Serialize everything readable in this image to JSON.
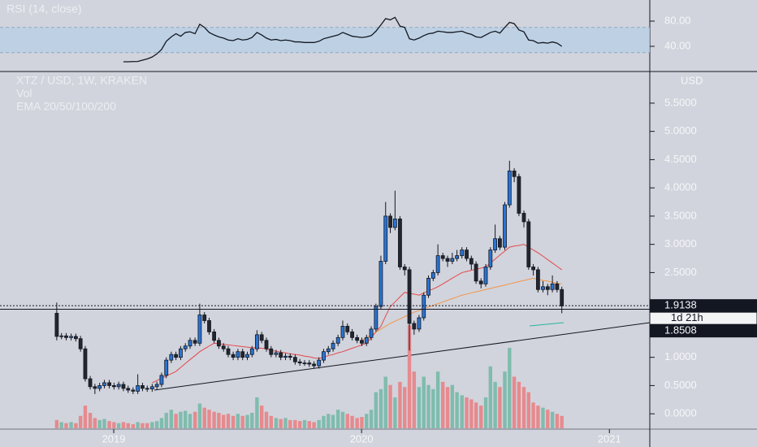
{
  "chart_data": {
    "type": "candlestick",
    "title": "XTZ / USD, 1W, KRAKEN",
    "volume_label": "Vol",
    "ema_label": "EMA 20/50/100/200",
    "currency": "USD",
    "countdown": "1d 21h",
    "last_price": {
      "value": 1.9138,
      "label": "1.9138"
    },
    "level": {
      "value": 1.8508,
      "label": "1.8508"
    },
    "up_color": "#2a74d4",
    "down_color": "#23262e",
    "up_volume_color": "#7fbcae",
    "down_volume_color": "#e68a8e",
    "xlim": [
      2018.541,
      2021.163
    ],
    "xticks": [
      2019,
      2020,
      2021
    ],
    "ylim": [
      -0.3,
      6.06
    ],
    "yticks": [
      {
        "value": 0,
        "label": "0.0000"
      },
      {
        "value": 0.5,
        "label": "0.5000"
      },
      {
        "value": 1,
        "label": "1.0000"
      },
      {
        "value": 2.5,
        "label": "2.5000"
      },
      {
        "value": 3,
        "label": "3.0000"
      },
      {
        "value": 3.5,
        "label": "3.5000"
      },
      {
        "value": 4,
        "label": "4.0000"
      },
      {
        "value": 4.5,
        "label": "4.5000"
      },
      {
        "value": 5,
        "label": "5.0000"
      },
      {
        "value": 5.5,
        "label": "5.5000"
      }
    ],
    "vlim": [
      0,
      100
    ],
    "x": [
      2018.77,
      2018.789,
      2018.808,
      2018.828,
      2018.847,
      2018.866,
      2018.885,
      2018.905,
      2018.924,
      2018.943,
      2018.962,
      2018.982,
      2019.001,
      2019.02,
      2019.039,
      2019.058,
      2019.078,
      2019.097,
      2019.116,
      2019.135,
      2019.155,
      2019.174,
      2019.193,
      2019.212,
      2019.232,
      2019.251,
      2019.27,
      2019.289,
      2019.308,
      2019.328,
      2019.347,
      2019.366,
      2019.385,
      2019.405,
      2019.424,
      2019.443,
      2019.462,
      2019.482,
      2019.501,
      2019.52,
      2019.539,
      2019.558,
      2019.578,
      2019.597,
      2019.616,
      2019.635,
      2019.655,
      2019.674,
      2019.693,
      2019.712,
      2019.732,
      2019.751,
      2019.77,
      2019.789,
      2019.808,
      2019.828,
      2019.847,
      2019.866,
      2019.885,
      2019.905,
      2019.924,
      2019.943,
      2019.962,
      2019.982,
      2020.001,
      2020.02,
      2020.039,
      2020.058,
      2020.078,
      2020.097,
      2020.116,
      2020.135,
      2020.155,
      2020.174,
      2020.193,
      2020.212,
      2020.232,
      2020.251,
      2020.27,
      2020.289,
      2020.308,
      2020.328,
      2020.347,
      2020.366,
      2020.385,
      2020.405,
      2020.424,
      2020.443,
      2020.462,
      2020.482,
      2020.501,
      2020.52,
      2020.539,
      2020.558,
      2020.578,
      2020.597,
      2020.616,
      2020.635,
      2020.655,
      2020.674,
      2020.693,
      2020.712,
      2020.732,
      2020.751,
      2020.77,
      2020.789,
      2020.808
    ],
    "open": [
      1.78,
      1.37,
      1.38,
      1.35,
      1.37,
      1.33,
      1.15,
      0.62,
      0.48,
      0.45,
      0.5,
      0.55,
      0.5,
      0.48,
      0.52,
      0.45,
      0.42,
      0.4,
      0.5,
      0.45,
      0.44,
      0.48,
      0.52,
      0.68,
      0.95,
      1.05,
      1.0,
      1.15,
      1.2,
      1.3,
      1.25,
      1.75,
      1.65,
      1.45,
      1.3,
      1.2,
      1.15,
      1.05,
      1.0,
      1.1,
      1.0,
      1.05,
      1.15,
      1.4,
      1.3,
      1.15,
      1.05,
      1.08,
      1.0,
      1.02,
      1.0,
      0.92,
      0.9,
      0.9,
      0.88,
      0.85,
      0.95,
      1.1,
      1.15,
      1.25,
      1.35,
      1.55,
      1.45,
      1.35,
      1.3,
      1.25,
      1.35,
      1.5,
      1.9,
      2.7,
      3.5,
      3.3,
      3.45,
      2.6,
      2.55,
      1.6,
      1.5,
      1.7,
      2.1,
      2.4,
      2.5,
      2.8,
      2.75,
      2.7,
      2.75,
      2.8,
      2.9,
      2.75,
      2.65,
      2.35,
      2.3,
      2.6,
      2.9,
      3.1,
      2.95,
      3.7,
      4.3,
      4.2,
      3.55,
      3.4,
      2.6,
      2.55,
      2.2,
      2.25,
      2.2,
      2.3,
      2.2
    ],
    "high": [
      1.97,
      1.43,
      1.43,
      1.42,
      1.42,
      1.38,
      1.2,
      0.67,
      0.53,
      0.55,
      0.6,
      0.6,
      0.55,
      0.57,
      0.57,
      0.5,
      0.47,
      0.7,
      0.55,
      0.5,
      0.53,
      0.57,
      0.73,
      1.0,
      1.1,
      1.1,
      1.2,
      1.25,
      1.35,
      1.35,
      1.95,
      1.8,
      1.7,
      1.5,
      1.35,
      1.25,
      1.2,
      1.1,
      1.15,
      1.15,
      1.1,
      1.2,
      1.48,
      1.45,
      1.35,
      1.2,
      1.13,
      1.13,
      1.07,
      1.07,
      1.05,
      0.97,
      0.95,
      0.95,
      0.93,
      1.0,
      1.15,
      1.2,
      1.3,
      1.4,
      1.65,
      1.6,
      1.5,
      1.4,
      1.35,
      1.4,
      1.55,
      1.95,
      2.8,
      3.75,
      3.55,
      3.95,
      3.5,
      2.65,
      2.6,
      1.65,
      1.75,
      2.15,
      2.45,
      2.55,
      3.0,
      2.85,
      2.8,
      2.85,
      2.9,
      2.95,
      2.95,
      2.8,
      2.7,
      2.4,
      2.65,
      2.95,
      3.35,
      3.15,
      3.75,
      4.48,
      4.35,
      4.25,
      3.6,
      3.45,
      2.65,
      2.6,
      2.35,
      2.3,
      2.45,
      2.35,
      2.25
    ],
    "low": [
      1.3,
      1.32,
      1.3,
      1.3,
      1.28,
      1.1,
      0.57,
      0.43,
      0.35,
      0.4,
      0.45,
      0.45,
      0.43,
      0.43,
      0.4,
      0.37,
      0.35,
      0.35,
      0.4,
      0.39,
      0.39,
      0.43,
      0.47,
      0.63,
      0.9,
      0.95,
      0.95,
      1.1,
      1.15,
      1.2,
      1.2,
      1.6,
      1.4,
      1.25,
      1.15,
      1.1,
      1.0,
      0.95,
      0.95,
      0.95,
      0.95,
      1.0,
      1.1,
      1.25,
      1.1,
      1.0,
      1.0,
      0.95,
      0.95,
      0.95,
      0.87,
      0.85,
      0.85,
      0.83,
      0.8,
      0.8,
      0.9,
      1.05,
      1.1,
      1.2,
      1.3,
      1.4,
      1.3,
      1.25,
      1.2,
      1.2,
      1.3,
      1.45,
      1.85,
      2.65,
      3.2,
      3.25,
      2.55,
      2.45,
      1.12,
      1.4,
      1.45,
      1.65,
      2.05,
      2.35,
      2.45,
      2.7,
      2.6,
      2.65,
      2.7,
      2.75,
      2.7,
      2.55,
      2.3,
      2.22,
      2.25,
      2.55,
      2.85,
      2.9,
      2.9,
      3.65,
      4.1,
      3.5,
      3.3,
      2.55,
      2.45,
      2.15,
      2.15,
      2.1,
      2.15,
      2.15,
      1.78
    ],
    "close": [
      1.37,
      1.38,
      1.35,
      1.37,
      1.33,
      1.15,
      0.62,
      0.48,
      0.45,
      0.5,
      0.55,
      0.5,
      0.48,
      0.52,
      0.45,
      0.42,
      0.4,
      0.5,
      0.45,
      0.44,
      0.48,
      0.52,
      0.68,
      0.95,
      1.05,
      1.0,
      1.15,
      1.2,
      1.3,
      1.25,
      1.75,
      1.65,
      1.45,
      1.3,
      1.2,
      1.15,
      1.05,
      1.0,
      1.1,
      1.0,
      1.05,
      1.15,
      1.4,
      1.3,
      1.15,
      1.05,
      1.08,
      1.0,
      1.02,
      1.0,
      0.92,
      0.9,
      0.9,
      0.88,
      0.85,
      0.95,
      1.1,
      1.15,
      1.25,
      1.35,
      1.55,
      1.45,
      1.35,
      1.3,
      1.25,
      1.35,
      1.5,
      1.9,
      2.7,
      3.5,
      3.3,
      3.45,
      2.6,
      2.55,
      1.6,
      1.5,
      1.7,
      2.1,
      2.4,
      2.5,
      2.8,
      2.75,
      2.7,
      2.75,
      2.8,
      2.9,
      2.75,
      2.65,
      2.35,
      2.3,
      2.6,
      2.9,
      3.1,
      2.95,
      3.7,
      4.3,
      4.2,
      3.55,
      3.4,
      2.6,
      2.55,
      2.2,
      2.25,
      2.2,
      2.3,
      2.2,
      1.91
    ],
    "volume": [
      8,
      6,
      5,
      6,
      5,
      12,
      22,
      15,
      10,
      8,
      9,
      7,
      6,
      5,
      6,
      5,
      4,
      6,
      5,
      5,
      6,
      7,
      10,
      15,
      18,
      14,
      16,
      17,
      14,
      16,
      24,
      20,
      18,
      16,
      15,
      13,
      14,
      12,
      14,
      12,
      13,
      15,
      30,
      22,
      16,
      12,
      10,
      9,
      10,
      8,
      8,
      7,
      8,
      7,
      6,
      8,
      12,
      14,
      13,
      18,
      16,
      14,
      12,
      10,
      11,
      14,
      18,
      35,
      38,
      50,
      42,
      30,
      45,
      40,
      100,
      55,
      40,
      50,
      42,
      38,
      55,
      45,
      40,
      42,
      35,
      32,
      30,
      28,
      25,
      22,
      30,
      60,
      45,
      40,
      55,
      78,
      50,
      45,
      40,
      35,
      25,
      22,
      20,
      18,
      16,
      14,
      12
    ],
    "ema": [
      {
        "color": "#e5484d",
        "values": [
          null,
          null,
          null,
          null,
          null,
          null,
          null,
          null,
          null,
          null,
          null,
          null,
          null,
          null,
          null,
          null,
          null,
          null,
          null,
          null,
          0.55,
          0.59,
          0.63,
          0.67,
          0.71,
          0.75,
          0.82,
          0.89,
          0.96,
          1.03,
          1.1,
          1.15,
          1.2,
          1.25,
          1.24,
          1.23,
          1.22,
          1.21,
          1.2,
          1.19,
          1.18,
          1.17,
          1.17,
          1.16,
          1.15,
          1.12,
          1.11,
          1.09,
          1.08,
          1.06,
          1.05,
          1.04,
          1.02,
          1.01,
          0.99,
          0.98,
          1.0,
          1.03,
          1.05,
          1.08,
          1.1,
          1.13,
          1.16,
          1.19,
          1.22,
          1.25,
          1.35,
          1.45,
          1.55,
          1.73,
          1.9,
          1.98,
          2.07,
          2.15,
          2.13,
          2.12,
          2.1,
          2.14,
          2.18,
          2.21,
          2.25,
          2.3,
          2.35,
          2.4,
          2.45,
          2.5,
          2.52,
          2.54,
          2.56,
          2.58,
          2.6,
          2.67,
          2.74,
          2.81,
          2.88,
          2.95,
          2.97,
          2.98,
          3.0,
          2.95,
          2.9,
          2.85,
          2.79,
          2.73,
          2.67,
          2.61,
          2.55
        ]
      },
      {
        "color": "#f2954a",
        "values": [
          null,
          null,
          null,
          null,
          null,
          null,
          null,
          null,
          null,
          null,
          null,
          null,
          null,
          null,
          null,
          null,
          null,
          null,
          null,
          null,
          null,
          null,
          null,
          null,
          null,
          null,
          null,
          null,
          null,
          null,
          null,
          null,
          null,
          null,
          null,
          null,
          null,
          null,
          null,
          null,
          null,
          null,
          null,
          null,
          null,
          null,
          null,
          null,
          null,
          null,
          null,
          null,
          null,
          null,
          null,
          null,
          null,
          null,
          null,
          null,
          null,
          null,
          null,
          null,
          1.3,
          1.35,
          1.4,
          1.45,
          1.5,
          1.55,
          1.6,
          1.64,
          1.68,
          1.72,
          1.76,
          1.8,
          1.83,
          1.86,
          1.89,
          1.92,
          1.95,
          1.98,
          2.01,
          2.04,
          2.07,
          2.1,
          2.12,
          2.14,
          2.16,
          2.18,
          2.2,
          2.22,
          2.24,
          2.26,
          2.28,
          2.3,
          2.32,
          2.34,
          2.36,
          2.38,
          2.4,
          2.38,
          2.36,
          2.35,
          2.33,
          2.31,
          2.3
        ]
      }
    ],
    "rsi": {
      "title": "RSI (14, close)",
      "color": "#131722",
      "band": [
        30,
        70
      ],
      "band_color": "#b9d0e6",
      "ylim": [
        0,
        113.5
      ],
      "yticks": [
        {
          "value": 80,
          "label": "80.00"
        },
        {
          "value": 40,
          "label": "40.00"
        }
      ],
      "values": [
        null,
        null,
        null,
        null,
        null,
        null,
        null,
        null,
        null,
        null,
        null,
        null,
        null,
        null,
        15.5,
        15.5,
        15.8,
        16,
        18,
        20,
        23,
        28,
        35,
        48,
        55,
        60,
        56,
        62,
        63,
        60,
        75,
        70,
        62,
        58,
        55,
        53,
        50,
        49,
        52,
        50,
        51,
        54,
        62,
        58,
        53,
        50,
        51,
        49,
        50,
        49,
        47,
        47,
        46,
        46,
        46,
        48,
        52,
        54,
        56,
        58,
        62,
        59,
        56,
        55,
        54,
        55,
        57,
        64,
        74,
        84,
        82,
        86,
        72,
        70,
        52,
        50,
        53,
        57,
        60,
        61,
        64,
        63,
        62,
        62,
        63,
        64,
        61,
        59,
        55,
        54,
        58,
        62,
        64,
        61,
        70,
        78,
        76,
        66,
        63,
        50,
        49,
        45,
        46,
        45,
        47,
        45,
        40
      ]
    }
  }
}
